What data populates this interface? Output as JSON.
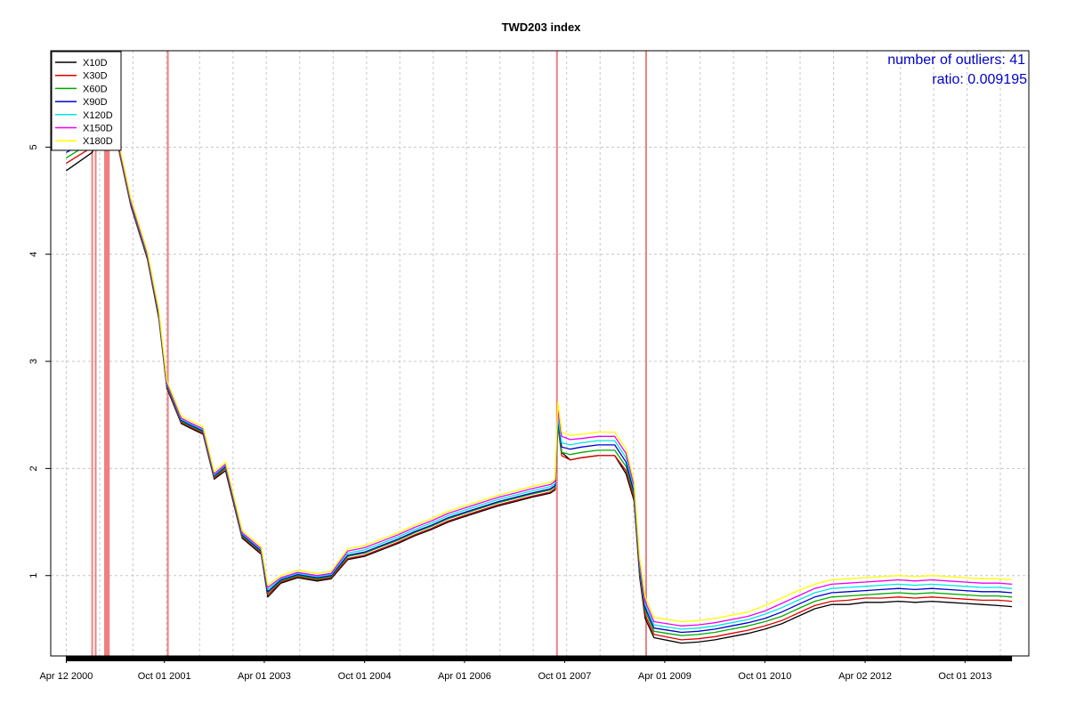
{
  "chart_data": {
    "type": "line",
    "title": "TWD203 index",
    "xlabel": "",
    "ylabel": "",
    "xlim": [
      "2000-01-18",
      "2014-09-15"
    ],
    "ylim": [
      0.25,
      5.9
    ],
    "y_ticks": [
      1,
      2,
      3,
      4,
      5
    ],
    "x_ticks": [
      {
        "date": "2000-04-12",
        "label": "Apr 12 2000"
      },
      {
        "date": "2001-10-01",
        "label": "Oct 01 2001"
      },
      {
        "date": "2003-04-01",
        "label": "Apr 01 2003"
      },
      {
        "date": "2004-10-01",
        "label": "Oct 01 2004"
      },
      {
        "date": "2006-04-01",
        "label": "Apr 01 2006"
      },
      {
        "date": "2007-10-01",
        "label": "Oct 01 2007"
      },
      {
        "date": "2009-04-01",
        "label": "Apr 01 2009"
      },
      {
        "date": "2010-10-01",
        "label": "Oct 01 2010"
      },
      {
        "date": "2012-04-02",
        "label": "Apr 02 2012"
      },
      {
        "date": "2013-10-01",
        "label": "Oct 01 2013"
      }
    ],
    "grid": true,
    "legend_position": "top-left",
    "x": [
      "2000-04-12",
      "2000-09-01",
      "2000-11-15",
      "2001-01-15",
      "2001-04-01",
      "2001-07-01",
      "2001-09-01",
      "2001-10-15",
      "2002-01-01",
      "2002-02-15",
      "2002-05-01",
      "2002-07-01",
      "2002-09-01",
      "2002-12-01",
      "2003-03-15",
      "2003-04-20",
      "2003-07-01",
      "2003-10-01",
      "2004-01-15",
      "2004-04-01",
      "2004-07-01",
      "2004-10-01",
      "2005-01-01",
      "2005-04-01",
      "2005-07-01",
      "2005-10-01",
      "2006-01-01",
      "2006-04-01",
      "2006-07-01",
      "2006-10-01",
      "2007-01-01",
      "2007-04-01",
      "2007-07-15",
      "2007-08-10",
      "2007-08-25",
      "2007-09-15",
      "2007-11-01",
      "2008-01-01",
      "2008-04-01",
      "2008-07-01",
      "2008-09-01",
      "2008-10-15",
      "2008-11-15",
      "2008-12-15",
      "2009-02-01",
      "2009-07-01",
      "2009-10-01",
      "2010-01-01",
      "2010-04-01",
      "2010-07-01",
      "2010-10-01",
      "2011-01-01",
      "2011-04-01",
      "2011-07-01",
      "2011-10-01",
      "2012-01-01",
      "2012-04-01",
      "2012-07-01",
      "2012-10-01",
      "2013-01-01",
      "2013-04-01",
      "2013-07-01",
      "2013-10-01",
      "2014-01-01",
      "2014-04-01",
      "2014-06-15"
    ],
    "series": [
      {
        "name": "X10D",
        "color": "#000000",
        "values": [
          4.78,
          4.95,
          5.3,
          5.05,
          4.45,
          3.95,
          3.4,
          2.75,
          2.42,
          2.38,
          2.32,
          1.9,
          1.98,
          1.35,
          1.2,
          0.8,
          0.93,
          0.98,
          0.95,
          0.97,
          1.15,
          1.18,
          1.24,
          1.3,
          1.37,
          1.43,
          1.5,
          1.55,
          1.6,
          1.65,
          1.69,
          1.73,
          1.77,
          1.8,
          2.45,
          2.15,
          2.08,
          2.1,
          2.12,
          2.12,
          1.95,
          1.7,
          0.98,
          0.6,
          0.42,
          0.37,
          0.38,
          0.4,
          0.43,
          0.46,
          0.5,
          0.55,
          0.62,
          0.69,
          0.73,
          0.73,
          0.75,
          0.75,
          0.76,
          0.75,
          0.76,
          0.75,
          0.74,
          0.73,
          0.72,
          0.71
        ]
      },
      {
        "name": "X30D",
        "color": "#dd0000",
        "values": [
          4.85,
          5.0,
          5.3,
          5.05,
          4.46,
          3.96,
          3.42,
          2.76,
          2.43,
          2.39,
          2.33,
          1.91,
          2.0,
          1.36,
          1.21,
          0.82,
          0.94,
          0.99,
          0.96,
          0.98,
          1.16,
          1.19,
          1.25,
          1.31,
          1.38,
          1.44,
          1.51,
          1.56,
          1.61,
          1.66,
          1.7,
          1.74,
          1.78,
          1.81,
          2.4,
          2.12,
          2.08,
          2.1,
          2.12,
          2.12,
          1.98,
          1.72,
          1.0,
          0.63,
          0.45,
          0.4,
          0.41,
          0.43,
          0.46,
          0.49,
          0.53,
          0.58,
          0.65,
          0.72,
          0.76,
          0.77,
          0.79,
          0.79,
          0.8,
          0.79,
          0.8,
          0.79,
          0.78,
          0.77,
          0.77,
          0.76
        ]
      },
      {
        "name": "X60D",
        "color": "#00aa00",
        "values": [
          4.9,
          5.05,
          5.32,
          5.07,
          4.47,
          3.97,
          3.43,
          2.77,
          2.44,
          2.4,
          2.34,
          1.92,
          2.01,
          1.37,
          1.22,
          0.84,
          0.95,
          1.0,
          0.97,
          0.99,
          1.18,
          1.21,
          1.27,
          1.33,
          1.4,
          1.46,
          1.53,
          1.58,
          1.63,
          1.68,
          1.72,
          1.76,
          1.8,
          1.83,
          2.42,
          2.15,
          2.13,
          2.15,
          2.17,
          2.17,
          2.02,
          1.75,
          1.03,
          0.67,
          0.48,
          0.44,
          0.45,
          0.47,
          0.5,
          0.53,
          0.57,
          0.62,
          0.69,
          0.76,
          0.8,
          0.81,
          0.82,
          0.83,
          0.84,
          0.83,
          0.84,
          0.83,
          0.82,
          0.81,
          0.81,
          0.8
        ]
      },
      {
        "name": "X90D",
        "color": "#0000cc",
        "values": [
          4.95,
          5.08,
          5.34,
          5.08,
          4.48,
          3.98,
          3.44,
          2.78,
          2.45,
          2.41,
          2.35,
          1.93,
          2.02,
          1.38,
          1.23,
          0.85,
          0.96,
          1.01,
          0.98,
          1.0,
          1.19,
          1.22,
          1.28,
          1.34,
          1.41,
          1.47,
          1.54,
          1.59,
          1.64,
          1.69,
          1.73,
          1.77,
          1.81,
          1.84,
          2.45,
          2.2,
          2.18,
          2.2,
          2.22,
          2.22,
          2.06,
          1.78,
          1.06,
          0.7,
          0.51,
          0.47,
          0.48,
          0.5,
          0.53,
          0.56,
          0.6,
          0.66,
          0.73,
          0.8,
          0.84,
          0.85,
          0.86,
          0.87,
          0.88,
          0.87,
          0.88,
          0.87,
          0.86,
          0.85,
          0.85,
          0.84
        ]
      },
      {
        "name": "X120D",
        "color": "#00e5e5",
        "values": [
          4.98,
          5.1,
          5.36,
          5.09,
          4.49,
          3.99,
          3.45,
          2.79,
          2.46,
          2.42,
          2.36,
          1.94,
          2.03,
          1.39,
          1.24,
          0.87,
          0.97,
          1.02,
          0.99,
          1.01,
          1.21,
          1.24,
          1.3,
          1.36,
          1.43,
          1.49,
          1.56,
          1.61,
          1.66,
          1.71,
          1.75,
          1.79,
          1.83,
          1.86,
          2.48,
          2.24,
          2.22,
          2.24,
          2.26,
          2.26,
          2.1,
          1.81,
          1.09,
          0.73,
          0.54,
          0.5,
          0.51,
          0.53,
          0.56,
          0.59,
          0.64,
          0.7,
          0.77,
          0.84,
          0.88,
          0.89,
          0.9,
          0.91,
          0.92,
          0.91,
          0.92,
          0.91,
          0.9,
          0.89,
          0.89,
          0.88
        ]
      },
      {
        "name": "X150D",
        "color": "#ee00ee",
        "values": [
          5.0,
          5.12,
          5.38,
          5.1,
          4.5,
          4.0,
          3.46,
          2.8,
          2.47,
          2.43,
          2.37,
          1.95,
          2.04,
          1.4,
          1.25,
          0.89,
          0.98,
          1.03,
          1.0,
          1.02,
          1.23,
          1.26,
          1.32,
          1.38,
          1.45,
          1.51,
          1.58,
          1.63,
          1.68,
          1.73,
          1.77,
          1.81,
          1.85,
          1.88,
          2.55,
          2.3,
          2.27,
          2.28,
          2.3,
          2.3,
          2.14,
          1.84,
          1.12,
          0.76,
          0.57,
          0.53,
          0.54,
          0.56,
          0.59,
          0.62,
          0.67,
          0.74,
          0.81,
          0.88,
          0.92,
          0.93,
          0.94,
          0.95,
          0.96,
          0.95,
          0.96,
          0.95,
          0.94,
          0.93,
          0.93,
          0.92
        ]
      },
      {
        "name": "X180D",
        "color": "#ffff00",
        "values": [
          5.02,
          5.14,
          5.4,
          5.12,
          4.52,
          4.02,
          3.48,
          2.82,
          2.49,
          2.45,
          2.39,
          1.97,
          2.06,
          1.42,
          1.27,
          0.91,
          1.0,
          1.05,
          1.02,
          1.04,
          1.25,
          1.28,
          1.34,
          1.4,
          1.47,
          1.53,
          1.6,
          1.65,
          1.7,
          1.75,
          1.79,
          1.83,
          1.87,
          1.9,
          2.62,
          2.34,
          2.31,
          2.32,
          2.34,
          2.34,
          2.18,
          1.88,
          1.16,
          0.8,
          0.61,
          0.57,
          0.58,
          0.6,
          0.63,
          0.66,
          0.72,
          0.79,
          0.86,
          0.92,
          0.96,
          0.97,
          0.98,
          0.99,
          1.0,
          0.99,
          1.0,
          0.99,
          0.98,
          0.97,
          0.97,
          0.96
        ]
      }
    ],
    "outlier_lines": [
      "2000-09-01",
      "2000-09-20",
      "2000-11-10",
      "2000-11-18",
      "2000-11-25",
      "2000-12-01",
      "2001-10-20",
      "2007-08-20",
      "2008-12-20"
    ],
    "outlier_line_color": "#f08080",
    "annotations": {
      "outliers_label": "number of outliers:  41",
      "ratio_label": "ratio:  0.009195",
      "color": "#0000cc"
    }
  }
}
